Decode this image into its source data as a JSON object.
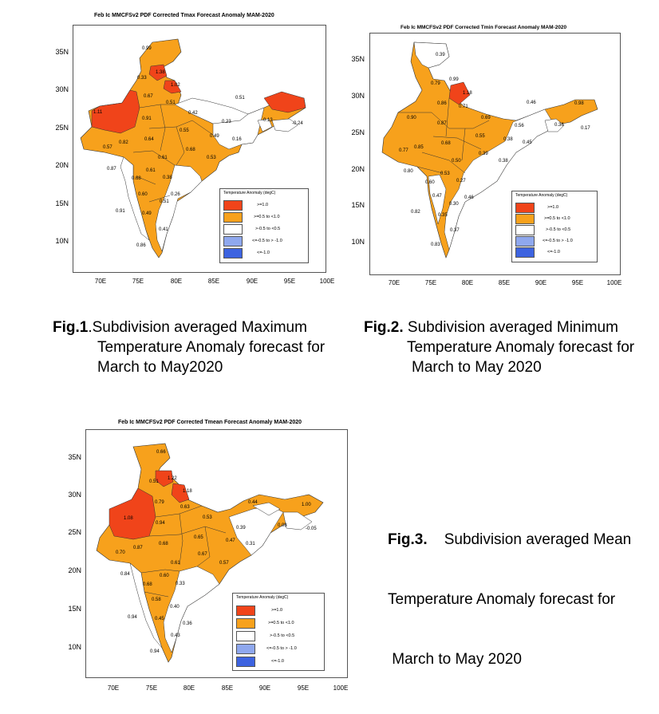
{
  "legend": {
    "title": "Temperature Anomaly (degC)",
    "items": [
      {
        "label": ">=1.0",
        "color": "#f0441a"
      },
      {
        "label": ">=0.5 to <1.0",
        "color": "#f7a11c"
      },
      {
        "label": ">-0.5 to <0.5",
        "color": "#ffffff"
      },
      {
        "label": "<=-0.5 to > -1.0",
        "color": "#8fa8ee"
      },
      {
        "label": "<=-1.0",
        "color": "#3d63e0"
      }
    ]
  },
  "fig1": {
    "title": "Feb Ic MMCFSv2 PDF Corrected Tmax Forecast Anomaly  MAM-2020",
    "lat_ticks": [
      "35N",
      "30N",
      "25N",
      "20N",
      "15N",
      "10N"
    ],
    "lon_ticks": [
      "70E",
      "75E",
      "80E",
      "85E",
      "90E",
      "95E",
      "100E"
    ],
    "values": [
      "0.99",
      "0.33",
      "1.38",
      "1.02",
      "1.11",
      "0.67",
      "0.51",
      "0.91",
      "0.42",
      "0.51",
      "-0.13",
      "-0.24",
      "0.64",
      "0.55",
      "0.23",
      "0.49",
      "0.16",
      "0.57",
      "0.82",
      "0.61",
      "0.68",
      "0.53",
      "0.87",
      "0.61",
      "0.38",
      "0.68",
      "0.60",
      "0.26",
      "0.51",
      "0.91",
      "0.49",
      "0.41",
      "0.86"
    ],
    "caption_label": "Fig.1",
    "caption_lines": [
      ".Subdivision averaged Maximum",
      "Temperature Anomaly forecast for",
      "March to May2020"
    ]
  },
  "fig2": {
    "title": "Feb Ic MMCFSv2 PDF Corrected Tmin Forecast Anomaly  MAM-2020",
    "lat_ticks": [
      "35N",
      "30N",
      "25N",
      "20N",
      "15N",
      "10N"
    ],
    "lon_ticks": [
      "70E",
      "75E",
      "80E",
      "85E",
      "90E",
      "95E",
      "100E"
    ],
    "values": [
      "0.39",
      "0.79",
      "0.99",
      "1.18",
      "0.86",
      "0.71",
      "0.90",
      "0.87",
      "0.69",
      "0.46",
      "0.98",
      "0.56",
      "0.36",
      "0.17",
      "0.85",
      "0.68",
      "0.55",
      "0.38",
      "0.77",
      "0.45",
      "0.39",
      "0.50",
      "0.38",
      "0.80",
      "0.53",
      "0.27",
      "0.60",
      "0.47",
      "0.46",
      "0.30",
      "0.82",
      "0.35",
      "0.37",
      "0.83"
    ],
    "caption_label": "Fig.2.",
    "caption_lines": [
      " Subdivision averaged Minimum",
      "Temperature Anomaly forecast for",
      "March to May 2020"
    ]
  },
  "fig3": {
    "title": "Feb Ic MMCFSv2 PDF Corrected Tmean Forecast Anomaly  MAM-2020",
    "lat_ticks": [
      "35N",
      "30N",
      "25N",
      "20N",
      "15N",
      "10N"
    ],
    "lon_ticks": [
      "70E",
      "75E",
      "80E",
      "85E",
      "90E",
      "95E",
      "100E"
    ],
    "values": [
      "0.66",
      "1.22",
      "0.51",
      "1.18",
      "0.79",
      "0.63",
      "0.44",
      "1.00",
      "1.08",
      "0.94",
      "0.53",
      "0.39",
      "0.08",
      "-0.05",
      "0.65",
      "0.47",
      "0.31",
      "0.70",
      "0.87",
      "0.68",
      "0.67",
      "0.57",
      "0.84",
      "0.61",
      "0.60",
      "0.33",
      "0.68",
      "0.58",
      "0.40",
      "0.94",
      "0.45",
      "0.36",
      "0.43",
      "0.94"
    ],
    "caption_label": "Fig.3.",
    "caption_lines": [
      "    Subdivision averaged Mean",
      "Temperature Anomaly forecast for",
      " March to May 2020"
    ]
  }
}
